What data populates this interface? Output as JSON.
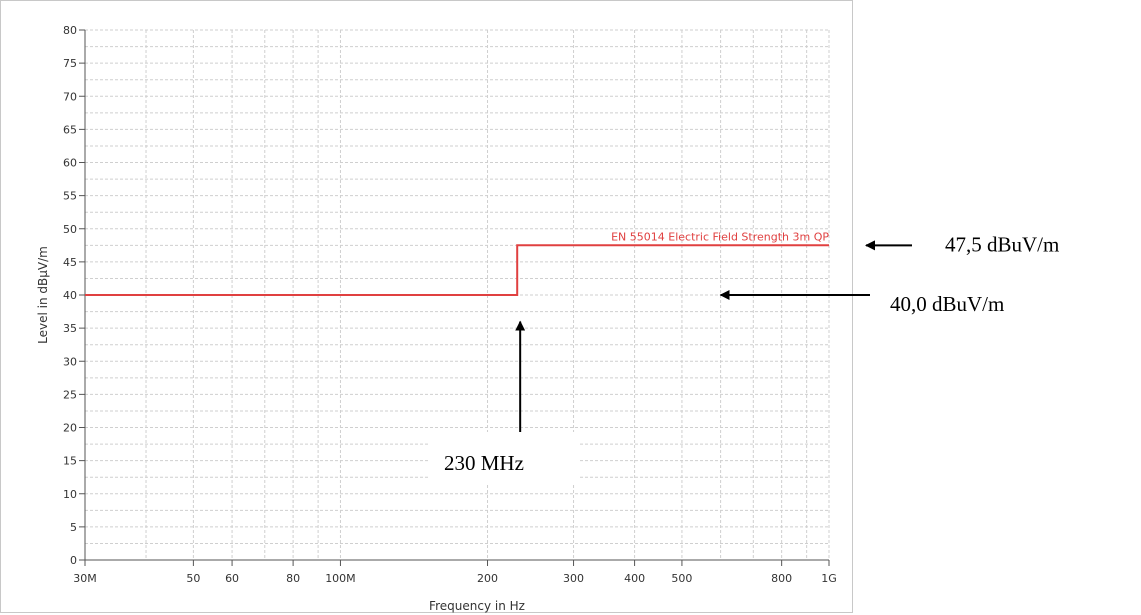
{
  "chart_data": {
    "type": "line",
    "x_scale": "log",
    "xlim": [
      30000000,
      1000000000
    ],
    "ylim": [
      0,
      80
    ],
    "y_ticks": [
      0,
      5,
      10,
      15,
      20,
      25,
      30,
      35,
      40,
      45,
      50,
      55,
      60,
      65,
      70,
      75,
      80
    ],
    "x_ticks": [
      {
        "value": 30000000,
        "label": "30M"
      },
      {
        "value": 50000000,
        "label": "50"
      },
      {
        "value": 60000000,
        "label": "60"
      },
      {
        "value": 80000000,
        "label": "80"
      },
      {
        "value": 100000000,
        "label": "100M"
      },
      {
        "value": 200000000,
        "label": "200"
      },
      {
        "value": 300000000,
        "label": "300"
      },
      {
        "value": 400000000,
        "label": "400"
      },
      {
        "value": 500000000,
        "label": "500"
      },
      {
        "value": 800000000,
        "label": "800"
      },
      {
        "value": 1000000000,
        "label": "1G"
      }
    ],
    "xlabel": "Frequency in Hz",
    "ylabel": "Level in dBμV/m",
    "grid": true,
    "series": [
      {
        "name": "EN 55014 Electric Field Strength 3m QP",
        "color": "#e04040",
        "points": [
          [
            30000000,
            40
          ],
          [
            230000000,
            40
          ],
          [
            230000000,
            47.5
          ],
          [
            1000000000,
            47.5
          ]
        ]
      }
    ],
    "annotations": [
      {
        "text": "47,5 dBuV/m",
        "target": [
          900000000,
          47.5
        ],
        "arrow": "left"
      },
      {
        "text": "40,0 dBuV/m",
        "target": [
          600000000,
          40
        ],
        "arrow": "left"
      },
      {
        "text": "230 MHz",
        "target": [
          230000000,
          39
        ],
        "arrow": "up"
      }
    ]
  }
}
